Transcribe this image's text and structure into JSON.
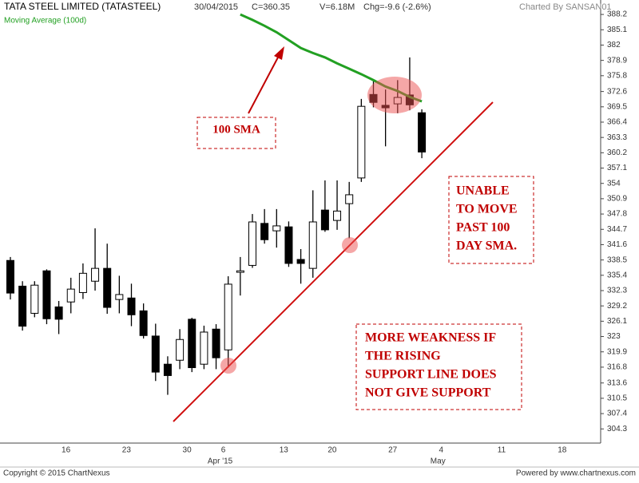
{
  "chart_data": {
    "type": "candlestick",
    "title": "TATA STEEL LIMITED (TATASTEEL)",
    "info": [
      "30/04/2015",
      "C=360.35",
      "V=6.18M",
      "Chg=-9.6 (-2.6%)"
    ],
    "credit": "Charted By SANSAN01",
    "footer_left": "Copyright © 2015 ChartNexus",
    "footer_right": "Powered by www.chartnexus.com",
    "categories": [
      null,
      null,
      null,
      null,
      "16",
      null,
      null,
      null,
      null,
      "23",
      null,
      null,
      null,
      null,
      "30",
      null,
      null,
      "6",
      null,
      null,
      null,
      null,
      "13",
      null,
      null,
      null,
      "20",
      null,
      null,
      null,
      null,
      "27",
      null,
      null,
      null,
      "4",
      null,
      null,
      null,
      null,
      "11",
      null,
      null,
      null,
      null,
      "18",
      null,
      null
    ],
    "months": [
      null,
      null,
      null,
      null,
      null,
      null,
      null,
      null,
      null,
      null,
      null,
      null,
      null,
      null,
      null,
      null,
      null,
      "Apr '15",
      null,
      null,
      null,
      null,
      null,
      null,
      null,
      null,
      null,
      null,
      null,
      null,
      null,
      null,
      null,
      null,
      null,
      "May",
      null,
      null,
      null,
      null,
      null,
      null,
      null,
      null,
      null,
      null,
      null,
      null
    ],
    "open": [
      338.4,
      333.2,
      327.7,
      336.3,
      329.0,
      330.0,
      331.9,
      334.2,
      336.8,
      330.5,
      330.8,
      328.2,
      323.1,
      317.4,
      318.2,
      326.5,
      317.4,
      324.5,
      320.3,
      336.0,
      337.4,
      345.9,
      344.4,
      345.2,
      338.6,
      336.8,
      348.6,
      346.5,
      349.9,
      355.1,
      372.0,
      369.8,
      370.1,
      371.9,
      368.3,
      null,
      null,
      null,
      null,
      null,
      null,
      null,
      null,
      null,
      null,
      null,
      null,
      null
    ],
    "high": [
      339.1,
      334.2,
      334.2,
      336.6,
      330.2,
      334.9,
      337.8,
      344.9,
      341.8,
      335.3,
      333.7,
      329.7,
      325.6,
      319.0,
      324.5,
      326.8,
      325.2,
      325.5,
      335.2,
      339.1,
      347.8,
      348.8,
      348.8,
      346.3,
      340.7,
      352.6,
      354.6,
      354.6,
      354.3,
      371.1,
      374.8,
      373.0,
      374.9,
      379.5,
      369.0,
      null,
      null,
      null,
      null,
      null,
      null,
      null,
      null,
      null,
      null,
      null,
      null,
      null
    ],
    "low": [
      330.5,
      324.2,
      326.9,
      325.5,
      323.5,
      327.7,
      330.6,
      332.3,
      327.6,
      327.7,
      325.1,
      322.6,
      314.0,
      311.2,
      316.4,
      315.8,
      316.4,
      316.4,
      316.7,
      331.3,
      336.9,
      341.8,
      341.0,
      337.1,
      333.7,
      334.9,
      344.2,
      344.6,
      342.9,
      354.3,
      369.4,
      361.5,
      368.2,
      368.8,
      359.1,
      null,
      null,
      null,
      null,
      null,
      null,
      null,
      null,
      null,
      null,
      null,
      null,
      null
    ],
    "close": [
      331.8,
      325.1,
      333.4,
      326.6,
      326.5,
      332.6,
      335.8,
      336.8,
      328.9,
      331.5,
      327.4,
      323.2,
      315.8,
      315.1,
      322.4,
      316.7,
      323.9,
      318.7,
      333.6,
      336.3,
      346.2,
      342.6,
      345.4,
      337.8,
      337.8,
      346.2,
      344.6,
      348.4,
      351.7,
      369.6,
      370.4,
      369.3,
      371.4,
      369.9,
      360.35,
      null,
      null,
      null,
      null,
      null,
      null,
      null,
      null,
      null,
      null,
      null,
      null,
      null
    ],
    "series": [
      {
        "name": "Moving Average (100d)",
        "color": "#22a022",
        "values": [
          null,
          null,
          null,
          null,
          null,
          null,
          null,
          null,
          null,
          null,
          null,
          null,
          null,
          null,
          null,
          null,
          null,
          null,
          null,
          388.2,
          387.1,
          385.9,
          384.6,
          383.0,
          381.4,
          380.4,
          379.5,
          378.3,
          377.2,
          376.1,
          374.9,
          373.6,
          372.7,
          371.5,
          370.6,
          null,
          null,
          null,
          null,
          null,
          null,
          null,
          null,
          null,
          null,
          null,
          null,
          null
        ]
      }
    ],
    "ylim": [
      300.3,
      390.8
    ],
    "yticks": [
      304.3,
      307.4,
      310.5,
      313.6,
      316.8,
      319.9,
      323,
      326.1,
      329.2,
      332.3,
      335.4,
      338.5,
      341.6,
      344.7,
      347.8,
      350.9,
      354,
      357.1,
      360.2,
      363.3,
      366.4,
      369.5,
      372.6,
      375.8,
      378.9,
      382,
      385.1,
      388.2
    ],
    "annotations": [
      {
        "lines": [
          "100 SMA"
        ]
      },
      {
        "lines": [
          "UNABLE",
          "TO MOVE",
          "PAST 100",
          "DAY SMA."
        ]
      },
      {
        "lines": [
          "MORE WEAKNESS IF",
          "THE RISING",
          "SUPPORT LINE DOES",
          "NOT GIVE SUPPORT"
        ]
      }
    ]
  }
}
